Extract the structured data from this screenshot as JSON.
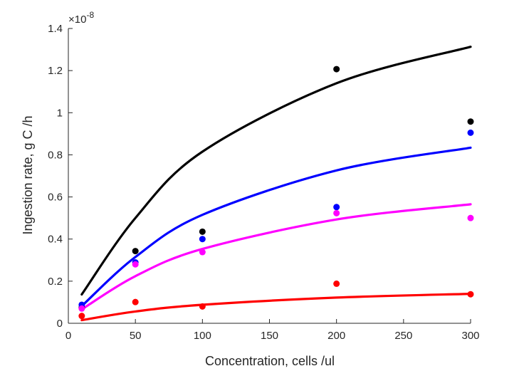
{
  "chart_data": {
    "type": "scatter",
    "xlabel": "Concentration, cells /ul",
    "ylabel": "Ingestion rate, g C /h",
    "y_exponent_label": "×10",
    "y_exponent_power": "-8",
    "xlim": [
      0,
      300
    ],
    "ylim": [
      0,
      1.4
    ],
    "xticks": [
      0,
      50,
      100,
      150,
      200,
      250,
      300
    ],
    "yticks": [
      0,
      0.2,
      0.4,
      0.6,
      0.8,
      1,
      1.2,
      1.4
    ],
    "xtick_labels": [
      "0",
      "50",
      "100",
      "150",
      "200",
      "250",
      "300"
    ],
    "ytick_labels": [
      "0",
      "0.2",
      "0.4",
      "0.6",
      "0.8",
      "1",
      "1.2",
      "1.4"
    ],
    "grid": false,
    "series": [
      {
        "color": "#000000",
        "points": [
          [
            10,
            0.074
          ],
          [
            50,
            0.343
          ],
          [
            100,
            0.435
          ],
          [
            200,
            1.207
          ],
          [
            300,
            0.958
          ]
        ],
        "curve": [
          [
            10,
            0.137
          ],
          [
            50,
            0.5
          ],
          [
            100,
            0.815
          ],
          [
            200,
            1.14
          ],
          [
            300,
            1.313
          ]
        ]
      },
      {
        "color": "#0000ff",
        "points": [
          [
            10,
            0.088
          ],
          [
            50,
            0.289
          ],
          [
            100,
            0.4
          ],
          [
            200,
            0.552
          ],
          [
            300,
            0.905
          ]
        ],
        "curve": [
          [
            10,
            0.082
          ],
          [
            50,
            0.315
          ],
          [
            100,
            0.515
          ],
          [
            200,
            0.726
          ],
          [
            300,
            0.834
          ]
        ]
      },
      {
        "color": "#ff00ff",
        "points": [
          [
            10,
            0.07
          ],
          [
            50,
            0.28
          ],
          [
            100,
            0.338
          ],
          [
            200,
            0.523
          ],
          [
            300,
            0.5
          ]
        ],
        "curve": [
          [
            10,
            0.066
          ],
          [
            50,
            0.224
          ],
          [
            100,
            0.353
          ],
          [
            200,
            0.493
          ],
          [
            300,
            0.565
          ]
        ]
      },
      {
        "color": "#ff0000",
        "points": [
          [
            10,
            0.035
          ],
          [
            50,
            0.101
          ],
          [
            100,
            0.08
          ],
          [
            200,
            0.188
          ],
          [
            300,
            0.138
          ]
        ],
        "curve": [
          [
            10,
            0.015
          ],
          [
            50,
            0.056
          ],
          [
            100,
            0.088
          ],
          [
            200,
            0.122
          ],
          [
            300,
            0.14
          ]
        ]
      }
    ]
  }
}
